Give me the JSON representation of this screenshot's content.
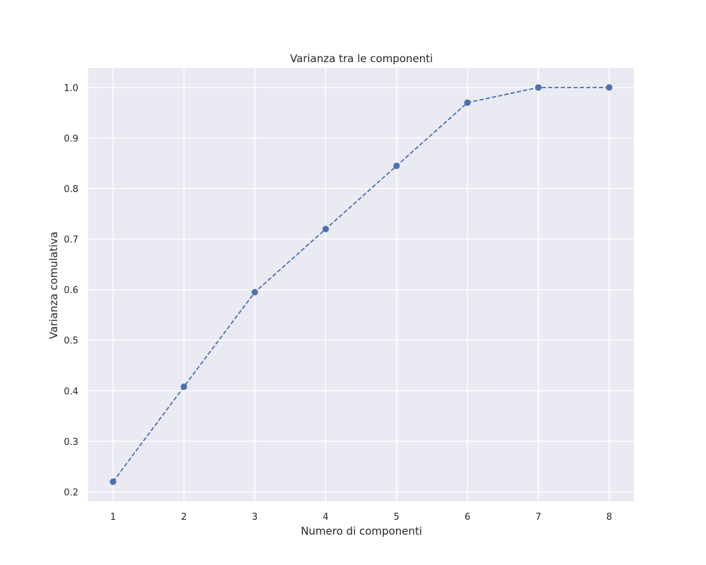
{
  "chart_data": {
    "type": "line",
    "title": "Varianza tra le componenti",
    "xlabel": "Numero di componenti",
    "ylabel": "Varianza comulativa",
    "x": [
      1,
      2,
      3,
      4,
      5,
      6,
      7,
      8
    ],
    "series": [
      {
        "values": [
          0.22,
          0.408,
          0.595,
          0.72,
          0.845,
          0.97,
          1.0,
          1.0
        ],
        "color": "#4c72b0",
        "line_style": "dashed",
        "marker": "circle"
      }
    ],
    "xticks": [
      "1",
      "2",
      "3",
      "4",
      "5",
      "6",
      "7",
      "8"
    ],
    "yticks": [
      "0.2",
      "0.3",
      "0.4",
      "0.5",
      "0.6",
      "0.7",
      "0.8",
      "0.9",
      "1.0"
    ],
    "xlim": [
      0.65,
      8.35
    ],
    "ylim": [
      0.181,
      1.039
    ],
    "grid": true,
    "background_color": "#eaeaf2",
    "grid_color": "#ffffff"
  }
}
